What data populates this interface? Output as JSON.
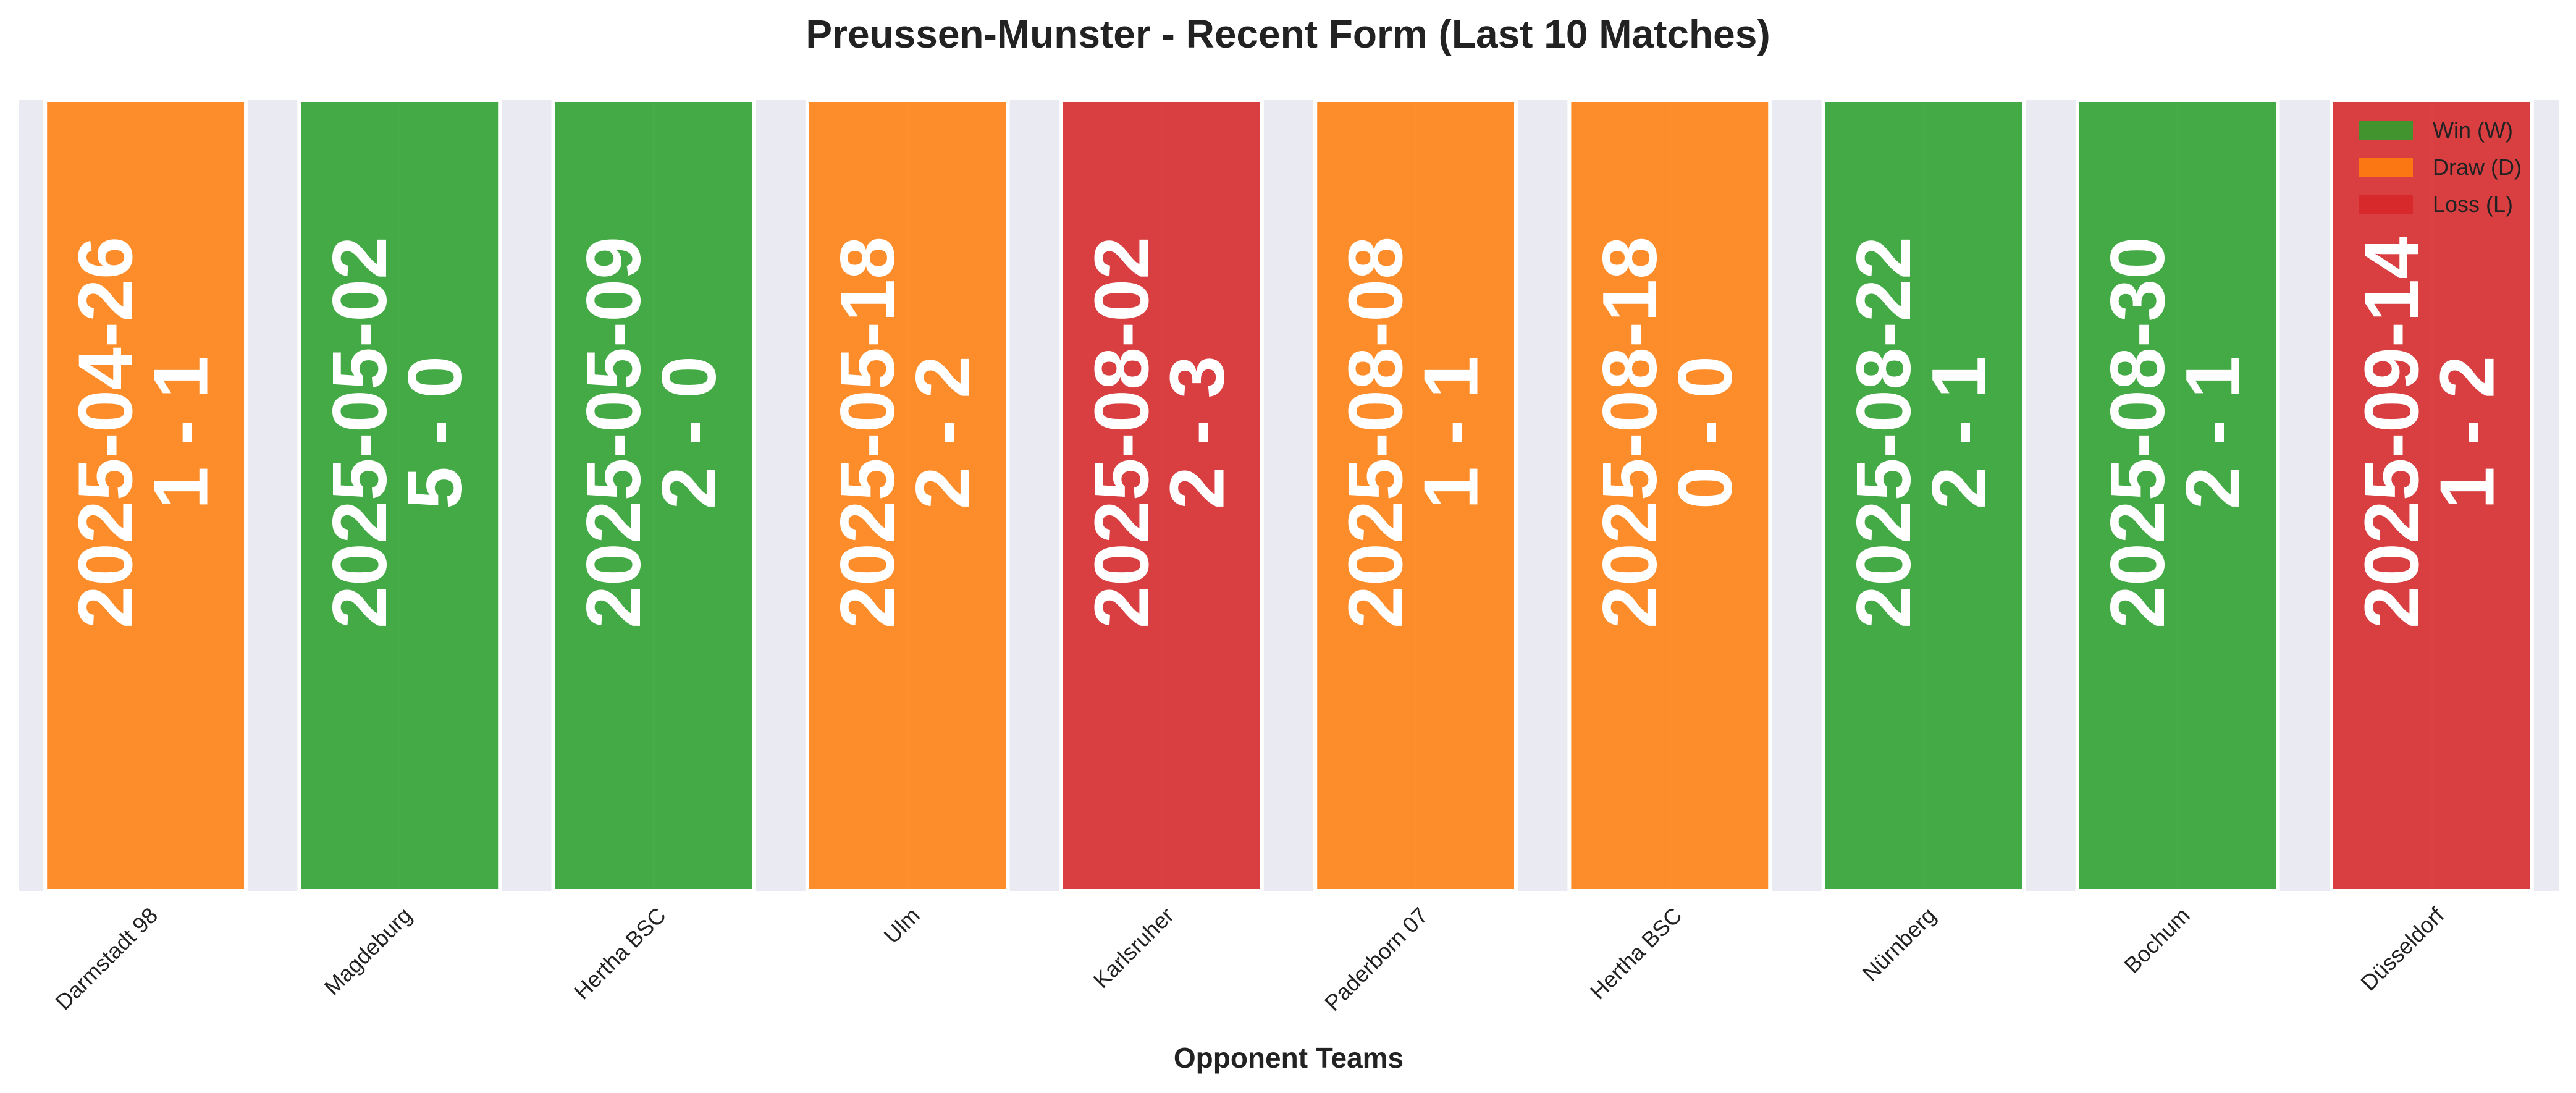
{
  "chart_data": {
    "type": "bar",
    "title": "Preussen-Munster - Recent Form (Last 10 Matches)",
    "xlabel": "Opponent Teams",
    "ylabel": "",
    "categories": [
      "Darmstadt 98",
      "Magdeburg",
      "Hertha BSC",
      "Ulm",
      "Karlsruher",
      "Paderborn 07",
      "Hertha BSC",
      "Nürnberg",
      "Bochum",
      "Düsseldorf"
    ],
    "values": [
      1,
      1,
      1,
      1,
      1,
      1,
      1,
      1,
      1,
      1
    ],
    "matches": [
      {
        "opponent": "Darmstadt 98",
        "date": "2025-04-26",
        "score": "1 - 1",
        "result": "D"
      },
      {
        "opponent": "Magdeburg",
        "date": "2025-05-02",
        "score": "5 - 0",
        "result": "W"
      },
      {
        "opponent": "Hertha BSC",
        "date": "2025-05-09",
        "score": "2 - 0",
        "result": "W"
      },
      {
        "opponent": "Ulm",
        "date": "2025-05-18",
        "score": "2 - 2",
        "result": "D"
      },
      {
        "opponent": "Karlsruher",
        "date": "2025-08-02",
        "score": "2 - 3",
        "result": "L"
      },
      {
        "opponent": "Paderborn 07",
        "date": "2025-08-08",
        "score": "1 - 1",
        "result": "D"
      },
      {
        "opponent": "Hertha BSC",
        "date": "2025-08-18",
        "score": "0 - 0",
        "result": "D"
      },
      {
        "opponent": "Nürnberg",
        "date": "2025-08-22",
        "score": "2 - 1",
        "result": "W"
      },
      {
        "opponent": "Bochum",
        "date": "2025-08-30",
        "score": "2 - 1",
        "result": "W"
      },
      {
        "opponent": "Düsseldorf",
        "date": "2025-09-14",
        "score": "1 - 2",
        "result": "L"
      }
    ],
    "result_colors": {
      "W": "#2ca02c",
      "D": "#ff7f0e",
      "L": "#d62728"
    },
    "legend": [
      {
        "key": "W",
        "label": "Win (W)"
      },
      {
        "key": "D",
        "label": "Draw (D)"
      },
      {
        "key": "L",
        "label": "Loss (L)"
      }
    ],
    "legend_position": "top-right",
    "ylim": [
      0,
      1
    ],
    "grid": true,
    "plot_background": "#eaeaf2"
  }
}
